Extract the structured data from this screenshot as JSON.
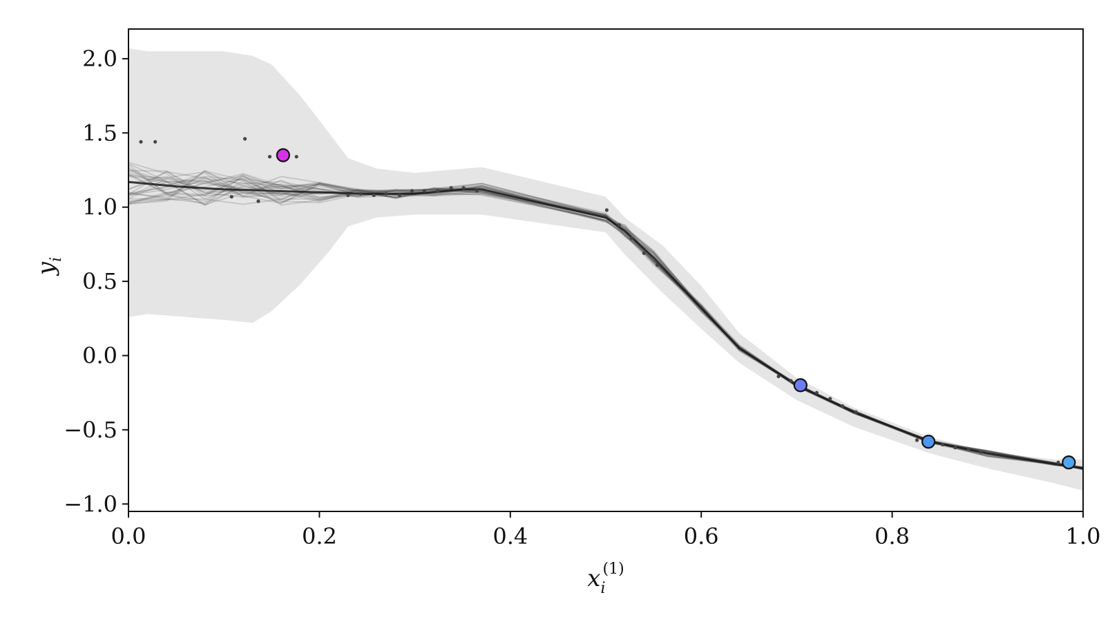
{
  "chart_data": {
    "type": "line",
    "xlabel": "x",
    "xlabel_sub": "i",
    "xlabel_sup": "(1)",
    "ylabel": "y",
    "ylabel_sub": "i",
    "xlim": [
      0.0,
      1.0
    ],
    "ylim": [
      -1.05,
      2.2
    ],
    "grid": false,
    "xticks": [
      0.0,
      0.2,
      0.4,
      0.6,
      0.8,
      1.0
    ],
    "xtick_labels": [
      "0.0",
      "0.2",
      "0.4",
      "0.6",
      "0.8",
      "1.0"
    ],
    "yticks": [
      -1.0,
      -0.5,
      0.0,
      0.5,
      1.0,
      1.5,
      2.0
    ],
    "ytick_labels": [
      "−1.0",
      "−0.5",
      "0.0",
      "0.5",
      "1.0",
      "1.5",
      "2.0"
    ],
    "band": {
      "x": [
        0.0,
        0.02,
        0.06,
        0.1,
        0.13,
        0.15,
        0.18,
        0.21,
        0.23,
        0.26,
        0.3,
        0.37,
        0.5,
        0.52,
        0.56,
        0.6,
        0.64,
        0.7,
        0.76,
        0.84,
        0.9,
        0.97,
        1.0
      ],
      "upper": [
        2.07,
        2.05,
        2.05,
        2.05,
        2.02,
        1.96,
        1.75,
        1.5,
        1.33,
        1.26,
        1.23,
        1.27,
        1.07,
        0.93,
        0.74,
        0.47,
        0.15,
        -0.15,
        -0.35,
        -0.55,
        -0.65,
        -0.7,
        -0.7
      ],
      "lower": [
        0.26,
        0.28,
        0.26,
        0.24,
        0.22,
        0.3,
        0.48,
        0.7,
        0.87,
        0.93,
        0.95,
        0.95,
        0.83,
        0.68,
        0.42,
        0.18,
        -0.05,
        -0.3,
        -0.48,
        -0.66,
        -0.76,
        -0.86,
        -0.91
      ]
    },
    "mean": {
      "x": [
        0.0,
        0.05,
        0.1,
        0.15,
        0.2,
        0.25,
        0.3,
        0.35,
        0.37,
        0.5,
        0.52,
        0.55,
        0.6,
        0.64,
        0.7,
        0.76,
        0.84,
        0.9,
        0.97,
        1.0
      ],
      "y": [
        1.17,
        1.14,
        1.12,
        1.11,
        1.1,
        1.09,
        1.09,
        1.12,
        1.12,
        0.93,
        0.84,
        0.66,
        0.32,
        0.05,
        -0.2,
        -0.38,
        -0.58,
        -0.66,
        -0.73,
        -0.76
      ]
    },
    "samples": {
      "count": 30,
      "x": [
        0.0,
        0.04,
        0.08,
        0.12,
        0.16,
        0.2,
        0.24,
        0.28,
        0.32,
        0.37,
        0.5,
        0.52,
        0.55,
        0.6,
        0.64,
        0.7,
        0.76,
        0.84,
        0.9,
        0.97,
        1.0
      ],
      "spread": [
        0.15,
        0.13,
        0.12,
        0.11,
        0.1,
        0.07,
        0.03,
        0.03,
        0.03,
        0.04,
        0.03,
        0.04,
        0.05,
        0.03,
        0.02,
        0.01,
        0.01,
        0.01,
        0.02,
        0.01,
        0.01
      ]
    },
    "observed_points": {
      "x": [
        0.013,
        0.028,
        0.108,
        0.122,
        0.136,
        0.148,
        0.176,
        0.23,
        0.243,
        0.257,
        0.27,
        0.284,
        0.297,
        0.31,
        0.324,
        0.338,
        0.351,
        0.365,
        0.501,
        0.514,
        0.527,
        0.54,
        0.554,
        0.681,
        0.694,
        0.708,
        0.721,
        0.735,
        0.748,
        0.762,
        0.826,
        0.839,
        0.853,
        0.866,
        0.88,
        0.893,
        0.974,
        0.988
      ],
      "y": [
        1.44,
        1.44,
        1.07,
        1.46,
        1.04,
        1.34,
        1.34,
        1.08,
        1.09,
        1.08,
        1.09,
        1.08,
        1.11,
        1.11,
        1.11,
        1.13,
        1.13,
        1.11,
        0.98,
        0.88,
        0.79,
        0.69,
        0.61,
        -0.14,
        -0.17,
        -0.2,
        -0.25,
        -0.29,
        -0.34,
        -0.38,
        -0.57,
        -0.58,
        -0.6,
        -0.62,
        -0.63,
        -0.65,
        -0.72,
        -0.72
      ]
    },
    "highlighted_points": [
      {
        "x": 0.162,
        "y": 1.35,
        "color": "#d633e8"
      },
      {
        "x": 0.704,
        "y": -0.2,
        "color": "#6b7df0"
      },
      {
        "x": 0.838,
        "y": -0.58,
        "color": "#4f97ee"
      },
      {
        "x": 0.985,
        "y": -0.72,
        "color": "#4fa6ee"
      }
    ],
    "colors": {
      "band": "#e5e5e5",
      "sample_line": "#404040",
      "mean_line": "#1a1a1a",
      "observed_point": "#444444",
      "marker_edge": "#111111"
    }
  }
}
